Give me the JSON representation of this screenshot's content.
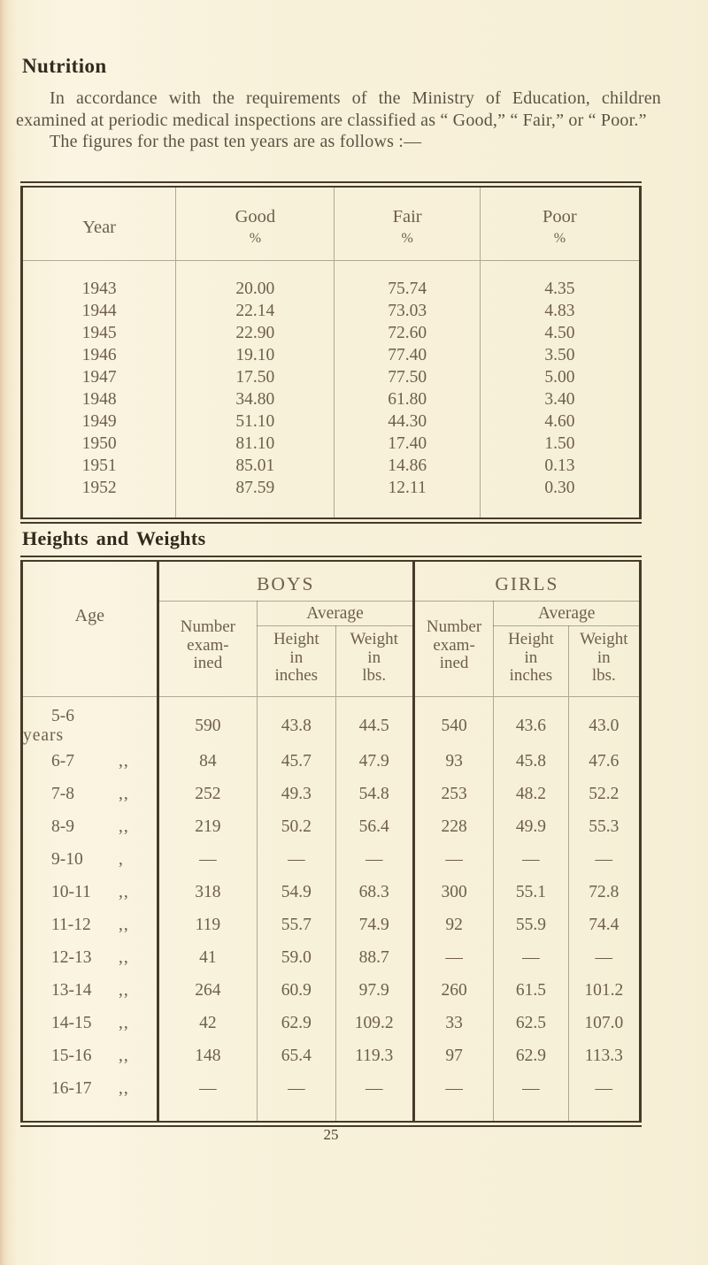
{
  "page": {
    "heading": "Nutrition",
    "paragraph": "In accordance with the requirements of the Ministry of Education, children examined at periodic medical inspections are classified as “ Good,” “ Fair,” or “ Poor.”",
    "figures_intro": "The figures for the past ten years are as follows :—",
    "page_number": "25"
  },
  "nutrition_table": {
    "headers": {
      "year": "Year",
      "good": "Good",
      "fair": "Fair",
      "poor": "Poor",
      "percent": "%"
    },
    "rows": [
      {
        "year": "1943",
        "good": "20.00",
        "fair": "75.74",
        "poor": "4.35"
      },
      {
        "year": "1944",
        "good": "22.14",
        "fair": "73.03",
        "poor": "4.83"
      },
      {
        "year": "1945",
        "good": "22.90",
        "fair": "72.60",
        "poor": "4.50"
      },
      {
        "year": "1946",
        "good": "19.10",
        "fair": "77.40",
        "poor": "3.50"
      },
      {
        "year": "1947",
        "good": "17.50",
        "fair": "77.50",
        "poor": "5.00"
      },
      {
        "year": "1948",
        "good": "34.80",
        "fair": "61.80",
        "poor": "3.40"
      },
      {
        "year": "1949",
        "good": "51.10",
        "fair": "44.30",
        "poor": "4.60"
      },
      {
        "year": "1950",
        "good": "81.10",
        "fair": "17.40",
        "poor": "1.50"
      },
      {
        "year": "1951",
        "good": "85.01",
        "fair": "14.86",
        "poor": "0.13"
      },
      {
        "year": "1952",
        "good": "87.59",
        "fair": "12.11",
        "poor": "0.30"
      }
    ]
  },
  "heights_table": {
    "heading": "Heights and Weights",
    "age_header": "Age",
    "boys_header": "BOYS",
    "girls_header": "GIRLS",
    "average_header": "Average",
    "number_header": "Number\nexam-\nined",
    "height_header": "Height\nin\ninches",
    "weight_header": "Weight\nin\nlbs.",
    "rows": [
      {
        "age": "5-6",
        "suffix": "years",
        "b_num": "590",
        "b_h": "43.8",
        "b_w": "44.5",
        "g_num": "540",
        "g_h": "43.6",
        "g_w": "43.0"
      },
      {
        "age": "6-7",
        "suffix": ",,",
        "b_num": "84",
        "b_h": "45.7",
        "b_w": "47.9",
        "g_num": "93",
        "g_h": "45.8",
        "g_w": "47.6"
      },
      {
        "age": "7-8",
        "suffix": ",,",
        "b_num": "252",
        "b_h": "49.3",
        "b_w": "54.8",
        "g_num": "253",
        "g_h": "48.2",
        "g_w": "52.2"
      },
      {
        "age": "8-9",
        "suffix": ",,",
        "b_num": "219",
        "b_h": "50.2",
        "b_w": "56.4",
        "g_num": "228",
        "g_h": "49.9",
        "g_w": "55.3"
      },
      {
        "age": "9-10",
        "suffix": ",",
        "b_num": "—",
        "b_h": "—",
        "b_w": "—",
        "g_num": "—",
        "g_h": "—",
        "g_w": "—"
      },
      {
        "age": "10-11",
        "suffix": ",,",
        "b_num": "318",
        "b_h": "54.9",
        "b_w": "68.3",
        "g_num": "300",
        "g_h": "55.1",
        "g_w": "72.8"
      },
      {
        "age": "11-12",
        "suffix": ",,",
        "b_num": "119",
        "b_h": "55.7",
        "b_w": "74.9",
        "g_num": "92",
        "g_h": "55.9",
        "g_w": "74.4"
      },
      {
        "age": "12-13",
        "suffix": ",,",
        "b_num": "41",
        "b_h": "59.0",
        "b_w": "88.7",
        "g_num": "—",
        "g_h": "—",
        "g_w": "—"
      },
      {
        "age": "13-14",
        "suffix": ",,",
        "b_num": "264",
        "b_h": "60.9",
        "b_w": "97.9",
        "g_num": "260",
        "g_h": "61.5",
        "g_w": "101.2"
      },
      {
        "age": "14-15",
        "suffix": ",,",
        "b_num": "42",
        "b_h": "62.9",
        "b_w": "109.2",
        "g_num": "33",
        "g_h": "62.5",
        "g_w": "107.0"
      },
      {
        "age": "15-16",
        "suffix": ",,",
        "b_num": "148",
        "b_h": "65.4",
        "b_w": "119.3",
        "g_num": "97",
        "g_h": "62.9",
        "g_w": "113.3"
      },
      {
        "age": "16-17",
        "suffix": ",,",
        "b_num": "—",
        "b_h": "—",
        "b_w": "—",
        "g_num": "—",
        "g_h": "—",
        "g_w": "—"
      }
    ]
  }
}
